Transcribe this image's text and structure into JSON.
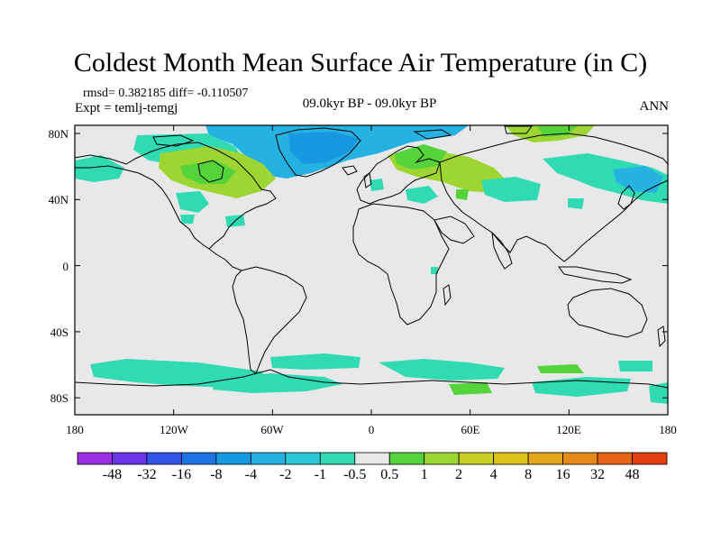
{
  "title": "Coldest Month Mean Surface Air Temperature (in C)",
  "meta": {
    "rmsd_line": "rmsd= 0.382185 diff= -0.110507",
    "expt_line": "Expt = temlj-temgj",
    "center_label": "09.0kyr BP - 09.0kyr BP",
    "season": "ANN"
  },
  "map": {
    "projection": "cylindrical-equidistant",
    "lon_range": [
      -180,
      180
    ],
    "lat_range": [
      -90,
      90
    ],
    "background_color": "#e8e8e8",
    "lat_ticks": [
      "80N",
      "40N",
      "0",
      "40S",
      "80S"
    ],
    "lon_ticks": [
      "180",
      "120W",
      "60W",
      "0",
      "60E",
      "120E",
      "180"
    ]
  },
  "colorbar": {
    "colors": [
      "#9a2fe2",
      "#6a35e8",
      "#3454e8",
      "#1e74e2",
      "#1898e0",
      "#25b2e3",
      "#2bc8d6",
      "#30dbb4",
      "#e8e8e8",
      "#54d33a",
      "#9dd632",
      "#c8d023",
      "#dcc21b",
      "#e3a51a",
      "#e58a19",
      "#e46516",
      "#e13f10"
    ],
    "labels": [
      "-48",
      "-32",
      "-16",
      "-8",
      "-4",
      "-2",
      "-1",
      "-0.5",
      "0.5",
      "1",
      "2",
      "4",
      "8",
      "16",
      "32",
      "48"
    ]
  }
}
